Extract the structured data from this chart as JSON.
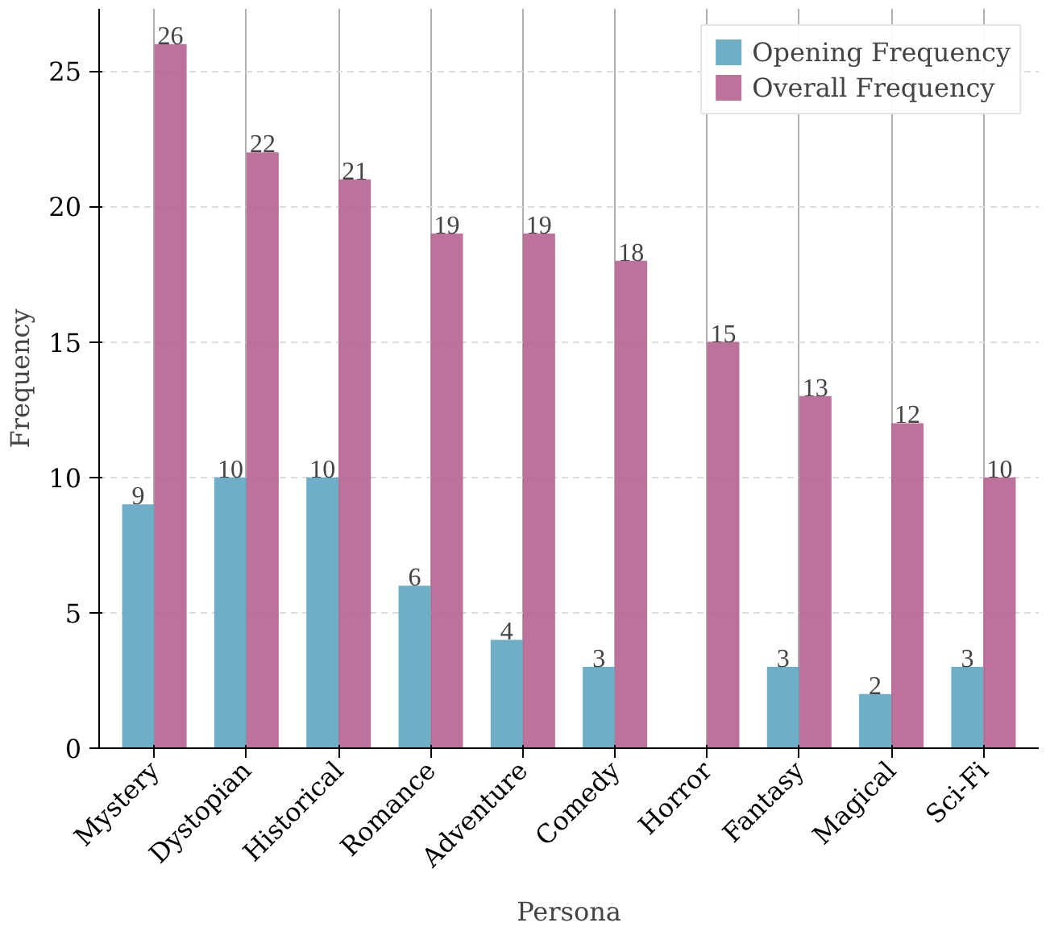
{
  "chart_data": {
    "type": "bar",
    "xlabel": "Persona",
    "ylabel": "Frequency",
    "categories": [
      "Mystery",
      "Dystopian",
      "Historical",
      "Romance",
      "Adventure",
      "Comedy",
      "Horror",
      "Fantasy",
      "Magical",
      "Sci-Fi"
    ],
    "series": [
      {
        "name": "Opening Frequency",
        "color": "#5ea5c0",
        "values": [
          9,
          10,
          10,
          6,
          4,
          3,
          0,
          3,
          2,
          3
        ],
        "value_labels": [
          "9",
          "10",
          "10",
          "6",
          "4",
          "3",
          null,
          "3",
          "2",
          "3"
        ]
      },
      {
        "name": "Overall Frequency",
        "color": "#b5638f",
        "values": [
          26,
          22,
          21,
          19,
          19,
          18,
          15,
          13,
          12,
          10
        ],
        "value_labels": [
          "26",
          "22",
          "21",
          "19",
          "19",
          "18",
          "15",
          "13",
          "12",
          "10"
        ]
      }
    ],
    "ylim": [
      0,
      27.3
    ],
    "yticks": [
      0,
      5,
      10,
      15,
      20,
      25
    ],
    "grid": true,
    "legend": "top right"
  }
}
